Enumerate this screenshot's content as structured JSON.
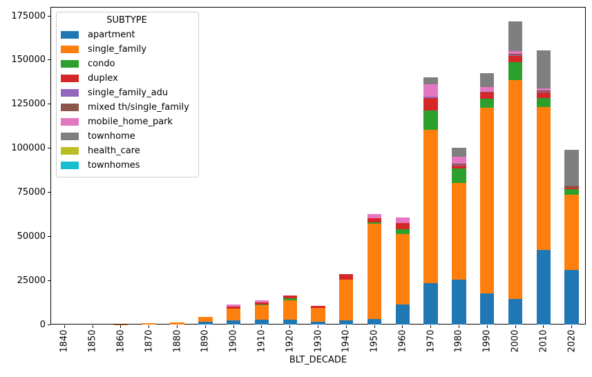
{
  "chart_data": {
    "type": "bar",
    "stacked": true,
    "title": "",
    "xlabel": "BLT_DECADE",
    "ylabel": "",
    "grid": false,
    "ylim": [
      0,
      180000
    ],
    "yticks": [
      0,
      25000,
      50000,
      75000,
      100000,
      125000,
      150000,
      175000
    ],
    "legend": {
      "title": "SUBTYPE",
      "position": "upper left"
    },
    "categories": [
      "1840",
      "1850",
      "1860",
      "1870",
      "1880",
      "1890",
      "1900",
      "1910",
      "1920",
      "1930",
      "1940",
      "1950",
      "1960",
      "1970",
      "1980",
      "1990",
      "2000",
      "2010",
      "2020"
    ],
    "series": [
      {
        "name": "apartment",
        "color": "#1f77b4",
        "values": [
          0,
          0,
          0,
          0,
          0,
          1500,
          2500,
          2800,
          2900,
          1600,
          2200,
          3300,
          11500,
          23500,
          25500,
          17600,
          14400,
          42400,
          31000
        ]
      },
      {
        "name": "single_family",
        "color": "#ff7f0e",
        "values": [
          0,
          0,
          100,
          600,
          1300,
          2700,
          6600,
          8300,
          10800,
          7800,
          23200,
          53900,
          39800,
          87000,
          54800,
          105500,
          124000,
          81000,
          42700
        ]
      },
      {
        "name": "condo",
        "color": "#2ca02c",
        "values": [
          0,
          0,
          0,
          0,
          0,
          0,
          0,
          300,
          1000,
          0,
          0,
          700,
          2700,
          10800,
          8100,
          5000,
          10400,
          5000,
          3000
        ]
      },
      {
        "name": "duplex",
        "color": "#d62728",
        "values": [
          0,
          0,
          0,
          0,
          0,
          0,
          1200,
          1200,
          1600,
          1000,
          3300,
          2500,
          3600,
          7200,
          1800,
          3400,
          3500,
          3000,
          900
        ]
      },
      {
        "name": "single_family_adu",
        "color": "#9467bd",
        "values": [
          0,
          0,
          0,
          0,
          0,
          0,
          0,
          0,
          0,
          0,
          0,
          0,
          0,
          700,
          300,
          300,
          500,
          400,
          0
        ]
      },
      {
        "name": "mixed th/single_family",
        "color": "#8c564b",
        "values": [
          0,
          0,
          0,
          0,
          0,
          0,
          0,
          0,
          0,
          0,
          0,
          0,
          0,
          0,
          600,
          300,
          500,
          900,
          1100
        ]
      },
      {
        "name": "mobile_home_park",
        "color": "#e377c2",
        "values": [
          0,
          0,
          0,
          0,
          0,
          0,
          1000,
          1000,
          0,
          0,
          0,
          2300,
          2900,
          6900,
          3900,
          2600,
          1700,
          1300,
          0
        ]
      },
      {
        "name": "townhome",
        "color": "#7f7f7f",
        "values": [
          0,
          0,
          0,
          0,
          0,
          0,
          0,
          0,
          0,
          0,
          0,
          0,
          0,
          4200,
          5200,
          7800,
          17000,
          21300,
          20300
        ]
      },
      {
        "name": "health_care",
        "color": "#bcbd22",
        "values": [
          0,
          0,
          0,
          0,
          0,
          0,
          0,
          0,
          0,
          0,
          0,
          0,
          0,
          0,
          0,
          0,
          0,
          0,
          0
        ]
      },
      {
        "name": "townhomes",
        "color": "#17becf",
        "values": [
          0,
          0,
          0,
          0,
          0,
          0,
          0,
          0,
          0,
          0,
          0,
          0,
          0,
          0,
          0,
          0,
          0,
          0,
          0
        ]
      }
    ]
  }
}
